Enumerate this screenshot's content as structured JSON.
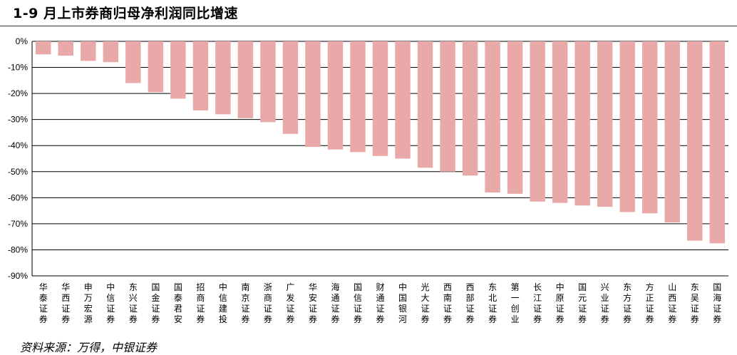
{
  "title": "1-9 月上市券商归母净利润同比增速",
  "source": "资料来源：万得，中银证券",
  "colors": {
    "bar": "#E8A9A8",
    "grid": "#000000",
    "text": "#000000"
  },
  "chart_data": {
    "type": "bar",
    "title": "1-9 月上市券商归母净利润同比增速",
    "xlabel": "",
    "ylabel": "",
    "ylim": [
      -90,
      0
    ],
    "yticks": [
      0,
      -10,
      -20,
      -30,
      -40,
      -50,
      -60,
      -70,
      -80,
      -90
    ],
    "ytick_labels": [
      "0%",
      "-10%",
      "-20%",
      "-30%",
      "-40%",
      "-50%",
      "-60%",
      "-70%",
      "-80%",
      "-90%"
    ],
    "grid": true,
    "categories": [
      "华泰证券",
      "华西证券",
      "申万宏源",
      "中信证券",
      "东兴证券",
      "国金证券",
      "国泰君安",
      "招商证券",
      "中信建投",
      "南京证券",
      "浙商证券",
      "广发证券",
      "华安证券",
      "海通证券",
      "国信证券",
      "财通证券",
      "中国银河",
      "光大证券",
      "西南证券",
      "西部证券",
      "东北证券",
      "第一创业",
      "长江证券",
      "中原证券",
      "国元证券",
      "兴业证券",
      "东方证券",
      "方正证券",
      "山西证券",
      "东吴证券",
      "国海证券"
    ],
    "values": [
      -5,
      -5.5,
      -7.5,
      -8,
      -16,
      -19.5,
      -22,
      -26.5,
      -28,
      -29.5,
      -31,
      -35.5,
      -40.5,
      -41.5,
      -42.5,
      -44,
      -45,
      -48.5,
      -50,
      -51.5,
      -58,
      -58.5,
      -61.5,
      -62,
      -63,
      -63.5,
      -65.5,
      -66,
      -69.5,
      -76.5,
      -77.5
    ]
  }
}
